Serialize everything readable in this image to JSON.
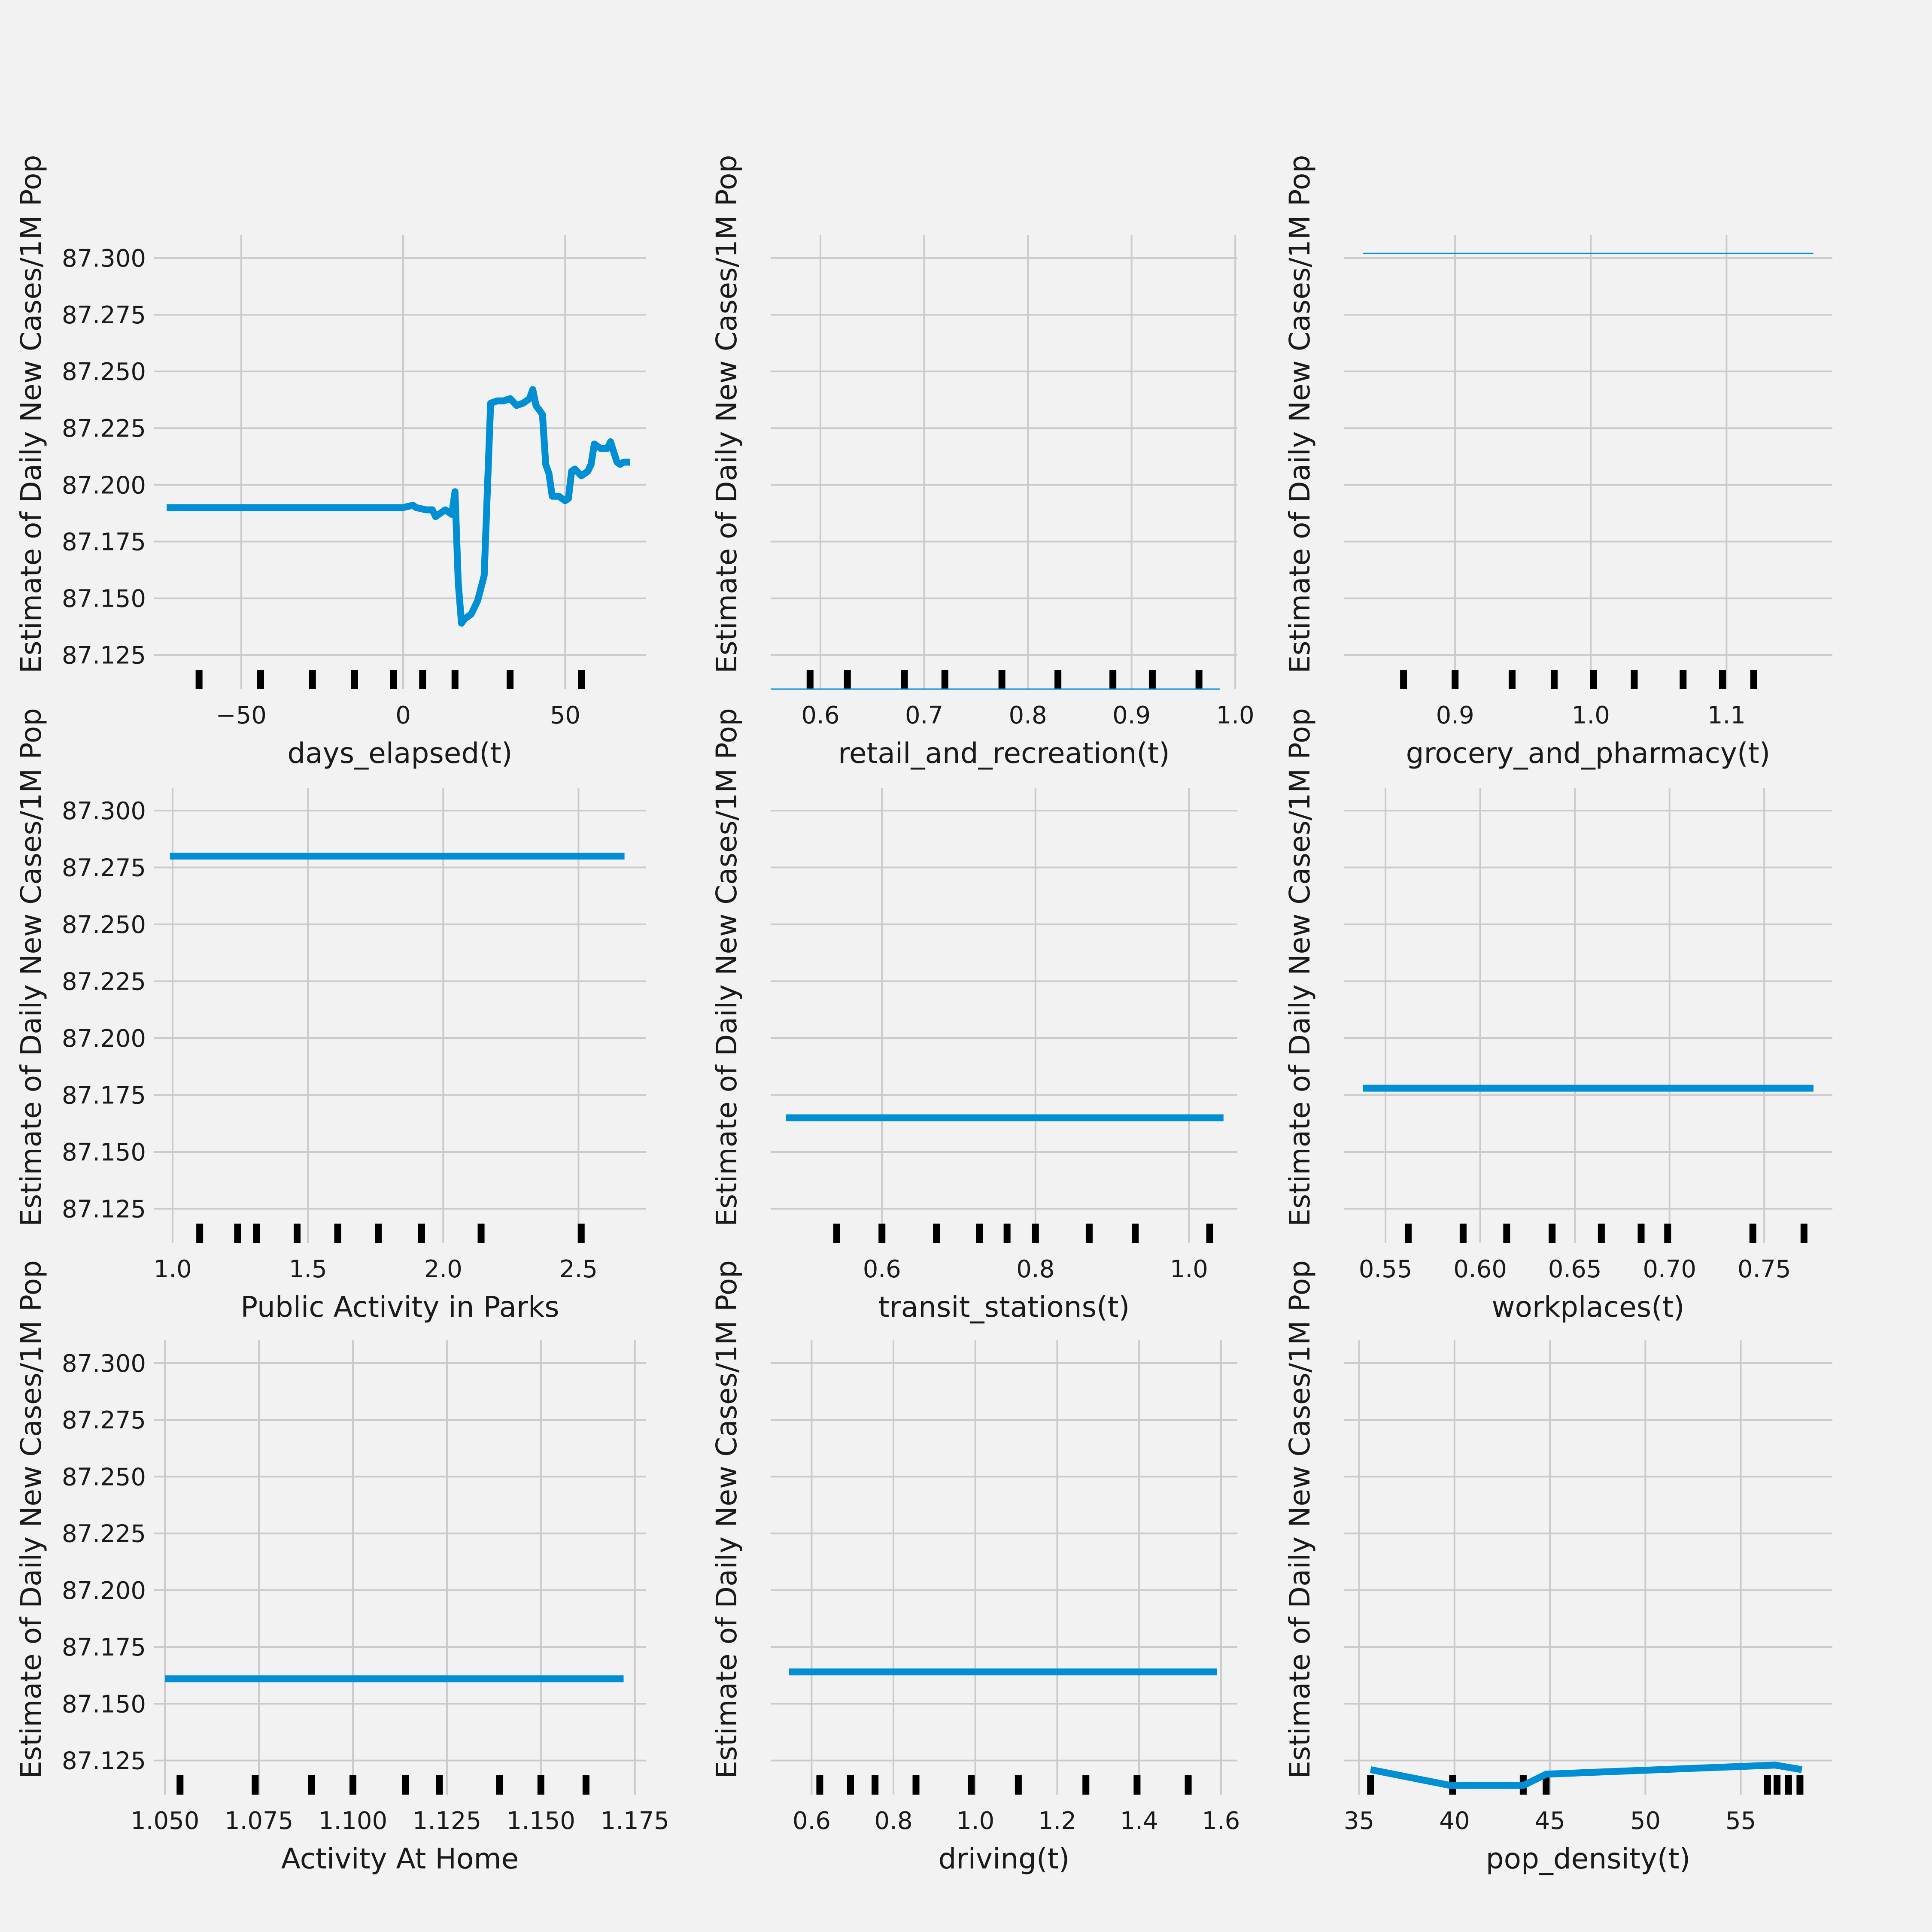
{
  "figure": {
    "ylabel": "Estimate of Daily New Cases/1M Pop",
    "y_ticks": [
      87.125,
      87.15,
      87.175,
      87.2,
      87.225,
      87.25,
      87.275,
      87.3
    ],
    "y_tick_labels": [
      "87.125",
      "87.150",
      "87.175",
      "87.200",
      "87.225",
      "87.250",
      "87.275",
      "87.300"
    ],
    "line_color": "#008fd5",
    "rug_color": "#000000",
    "background": "#f2f2f2",
    "grid_color": "#cbcbcb"
  },
  "chart_data": [
    {
      "type": "line",
      "xlabel": "days_elapsed(t)",
      "ylabel": "Estimate of Daily New Cases/1M Pop",
      "xlim": [
        -77,
        75
      ],
      "ylim": [
        87.11,
        87.31
      ],
      "x_ticks": [
        -50,
        0,
        50
      ],
      "x_tick_labels": [
        "−50",
        "0",
        "50"
      ],
      "show_y_ticks": true,
      "x": [
        -73,
        0,
        3,
        4,
        7,
        9,
        10,
        13,
        15,
        16,
        17,
        18,
        19,
        21,
        23,
        25,
        27,
        29,
        31,
        33,
        35,
        37,
        39,
        40,
        41,
        42,
        43,
        44,
        45,
        46,
        48,
        50,
        51,
        52,
        53,
        55,
        57,
        58,
        59,
        60,
        61,
        62,
        63,
        64,
        66,
        67,
        68,
        69,
        70
      ],
      "y": [
        87.19,
        87.19,
        87.191,
        87.19,
        87.189,
        87.189,
        87.186,
        87.189,
        87.187,
        87.197,
        87.157,
        87.139,
        87.141,
        87.143,
        87.149,
        87.16,
        87.236,
        87.237,
        87.237,
        87.238,
        87.235,
        87.236,
        87.238,
        87.242,
        87.235,
        87.233,
        87.231,
        87.209,
        87.205,
        87.195,
        87.195,
        87.193,
        87.194,
        87.206,
        87.207,
        87.204,
        87.206,
        87.209,
        87.218,
        87.217,
        87.216,
        87.216,
        87.216,
        87.219,
        87.21,
        87.209,
        87.21,
        87.21,
        87.21
      ],
      "rug": [
        -63,
        -44,
        -28,
        -15,
        -3,
        6,
        16,
        33,
        55
      ]
    },
    {
      "type": "line",
      "xlabel": "retail_and_recreation(t)",
      "ylabel": "Estimate of Daily New Cases/1M Pop",
      "xlim": [
        0.552,
        1.002
      ],
      "ylim": [
        87.11,
        87.31
      ],
      "x_ticks": [
        0.6,
        0.7,
        0.8,
        0.9,
        1.0
      ],
      "x_tick_labels": [
        "0.6",
        "0.7",
        "0.8",
        "0.9",
        "1.0"
      ],
      "show_y_ticks": false,
      "x": [
        0.552,
        0.985
      ],
      "y": [
        87.11,
        87.11
      ],
      "line_style": "thin",
      "rug": [
        0.59,
        0.626,
        0.681,
        0.72,
        0.775,
        0.829,
        0.882,
        0.92,
        0.965
      ]
    },
    {
      "type": "line",
      "xlabel": "grocery_and_pharmacy(t)",
      "ylabel": "Estimate of Daily New Cases/1M Pop",
      "xlim": [
        0.818,
        1.178
      ],
      "ylim": [
        87.11,
        87.31
      ],
      "x_ticks": [
        0.9,
        1.0,
        1.1
      ],
      "x_tick_labels": [
        "0.9",
        "1.0",
        "1.1"
      ],
      "show_y_ticks": false,
      "x": [
        0.832,
        1.164
      ],
      "y": [
        87.302,
        87.302
      ],
      "line_style": "thin",
      "rug": [
        0.862,
        0.9,
        0.942,
        0.973,
        1.002,
        1.032,
        1.068,
        1.097,
        1.12
      ]
    },
    {
      "type": "line",
      "xlabel": "Public Activity in Parks",
      "ylabel": "Estimate of Daily New Cases/1M Pop",
      "xlim": [
        0.93,
        2.75
      ],
      "ylim": [
        87.11,
        87.31
      ],
      "x_ticks": [
        1.0,
        1.5,
        2.0,
        2.5
      ],
      "x_tick_labels": [
        "1.0",
        "1.5",
        "2.0",
        "2.5"
      ],
      "show_y_ticks": true,
      "x": [
        0.99,
        2.67
      ],
      "y": [
        87.28,
        87.28
      ],
      "rug": [
        1.1,
        1.24,
        1.31,
        1.46,
        1.61,
        1.76,
        1.92,
        2.14,
        2.51
      ]
    },
    {
      "type": "line",
      "xlabel": "transit_stations(t)",
      "ylabel": "Estimate of Daily New Cases/1M Pop",
      "xlim": [
        0.455,
        1.063
      ],
      "ylim": [
        87.11,
        87.31
      ],
      "x_ticks": [
        0.6,
        0.8,
        1.0
      ],
      "x_tick_labels": [
        "0.6",
        "0.8",
        "1.0"
      ],
      "show_y_ticks": false,
      "x": [
        0.475,
        1.045
      ],
      "y": [
        87.165,
        87.165
      ],
      "rug": [
        0.541,
        0.6,
        0.671,
        0.727,
        0.763,
        0.8,
        0.87,
        0.93,
        1.027
      ]
    },
    {
      "type": "line",
      "xlabel": "workplaces(t)",
      "ylabel": "Estimate of Daily New Cases/1M Pop",
      "xlim": [
        0.528,
        0.786
      ],
      "ylim": [
        87.11,
        87.31
      ],
      "x_ticks": [
        0.55,
        0.6,
        0.65,
        0.7,
        0.75
      ],
      "x_tick_labels": [
        "0.55",
        "0.60",
        "0.65",
        "0.70",
        "0.75"
      ],
      "show_y_ticks": false,
      "x": [
        0.538,
        0.776
      ],
      "y": [
        87.178,
        87.178
      ],
      "rug": [
        0.562,
        0.591,
        0.614,
        0.638,
        0.664,
        0.685,
        0.699,
        0.744,
        0.771
      ]
    },
    {
      "type": "line",
      "xlabel": "Activity At Home",
      "ylabel": "Estimate of Daily New Cases/1M Pop",
      "xlim": [
        1.047,
        1.178
      ],
      "ylim": [
        87.11,
        87.31
      ],
      "x_ticks": [
        1.05,
        1.075,
        1.1,
        1.125,
        1.15,
        1.175
      ],
      "x_tick_labels": [
        "1.050",
        "1.075",
        "1.100",
        "1.125",
        "1.150",
        "1.175"
      ],
      "show_y_ticks": true,
      "x": [
        1.05,
        1.172
      ],
      "y": [
        87.161,
        87.161
      ],
      "rug": [
        1.054,
        1.074,
        1.089,
        1.1,
        1.114,
        1.123,
        1.139,
        1.15,
        1.162
      ]
    },
    {
      "type": "line",
      "xlabel": "driving(t)",
      "ylabel": "Estimate of Daily New Cases/1M Pop",
      "xlim": [
        0.5,
        1.64
      ],
      "ylim": [
        87.11,
        87.31
      ],
      "x_ticks": [
        0.6,
        0.8,
        1.0,
        1.2,
        1.4,
        1.6
      ],
      "x_tick_labels": [
        "0.6",
        "0.8",
        "1.0",
        "1.2",
        "1.4",
        "1.6"
      ],
      "show_y_ticks": false,
      "x": [
        0.545,
        1.59
      ],
      "y": [
        87.164,
        87.164
      ],
      "rug": [
        0.62,
        0.695,
        0.755,
        0.855,
        0.99,
        1.105,
        1.27,
        1.395,
        1.52
      ]
    },
    {
      "type": "line",
      "xlabel": "pop_density(t)",
      "ylabel": "Estimate of Daily New Cases/1M Pop",
      "xlim": [
        34.2,
        59.8
      ],
      "ylim": [
        87.11,
        87.31
      ],
      "x_ticks": [
        35,
        40,
        45,
        50,
        55
      ],
      "x_tick_labels": [
        "35",
        "40",
        "45",
        "50",
        "55"
      ],
      "show_y_ticks": false,
      "x": [
        35.6,
        39.8,
        43.6,
        44.8,
        56.8,
        58.2
      ],
      "y": [
        87.121,
        87.114,
        87.114,
        87.119,
        87.123,
        87.121
      ],
      "rug": [
        35.6,
        39.9,
        43.6,
        44.8,
        56.4,
        56.9,
        57.5,
        58.1
      ]
    }
  ]
}
